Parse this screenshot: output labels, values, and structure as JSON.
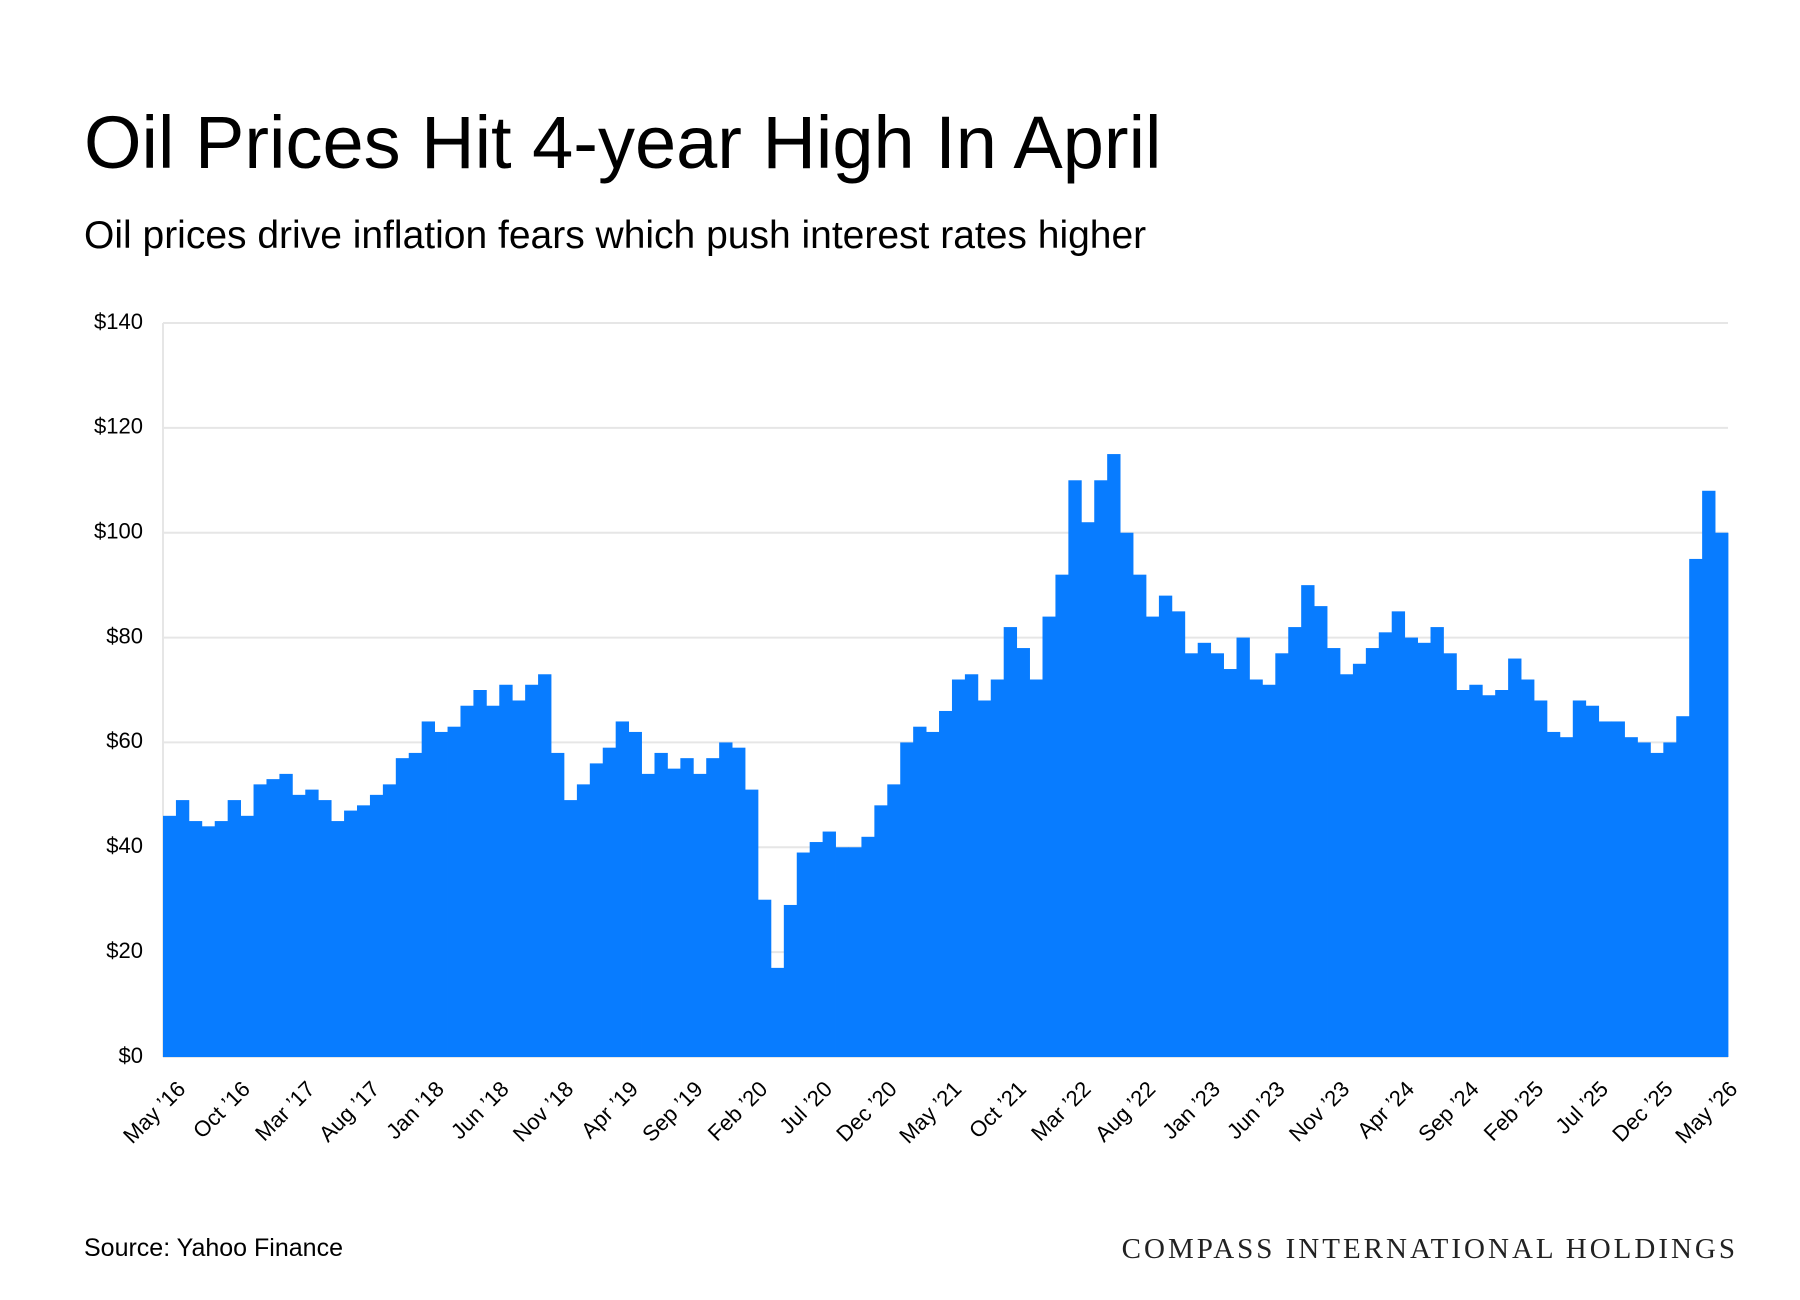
{
  "chart_data": {
    "type": "bar",
    "title": "Oil Prices Hit 4-year High In April",
    "subtitle": "Oil prices drive inflation fears which push interest rates higher",
    "source": "Source: Yahoo Finance",
    "brand": "COMPASS INTERNATIONAL HOLDINGS",
    "color": "#087cff",
    "grid": true,
    "ylim": [
      0,
      140
    ],
    "yticks": [
      {
        "value": 0,
        "label": "$0"
      },
      {
        "value": 20,
        "label": "$20"
      },
      {
        "value": 40,
        "label": "$40"
      },
      {
        "value": 60,
        "label": "$60"
      },
      {
        "value": 80,
        "label": "$80"
      },
      {
        "value": 100,
        "label": "$100"
      },
      {
        "value": 120,
        "label": "$120"
      },
      {
        "value": 140,
        "label": "$140"
      }
    ],
    "categories": [
      "May ’16",
      null,
      null,
      null,
      null,
      "Oct ’16",
      null,
      null,
      null,
      null,
      "Mar ’17",
      null,
      null,
      null,
      null,
      "Aug ’17",
      null,
      null,
      null,
      null,
      "Jan ’18",
      null,
      null,
      null,
      null,
      "Jun ’18",
      null,
      null,
      null,
      null,
      "Nov ’18",
      null,
      null,
      null,
      null,
      "Apr ’19",
      null,
      null,
      null,
      null,
      "Sep ’19",
      null,
      null,
      null,
      null,
      "Feb ’20",
      null,
      null,
      null,
      null,
      "Jul ’20",
      null,
      null,
      null,
      null,
      "Dec ’20",
      null,
      null,
      null,
      null,
      "May ’21",
      null,
      null,
      null,
      null,
      "Oct ’21",
      null,
      null,
      null,
      null,
      "Mar ’22",
      null,
      null,
      null,
      null,
      "Aug ’22",
      null,
      null,
      null,
      null,
      "Jan ’23",
      null,
      null,
      null,
      null,
      "Jun ’23",
      null,
      null,
      null,
      null,
      "Nov ’23",
      null,
      null,
      null,
      null,
      "Apr ’24",
      null,
      null,
      null,
      null,
      "Sep ’24",
      null,
      null,
      null,
      null,
      "Feb ’25",
      null,
      null,
      null,
      null,
      "Jul ’25",
      null,
      null,
      null,
      null,
      "Dec ’25",
      null,
      null,
      null,
      null,
      "May ’26"
    ],
    "values": [
      46,
      49,
      45,
      44,
      45,
      49,
      46,
      52,
      53,
      54,
      50,
      51,
      49,
      45,
      47,
      48,
      50,
      52,
      57,
      58,
      64,
      62,
      63,
      67,
      70,
      67,
      71,
      68,
      71,
      73,
      58,
      49,
      52,
      56,
      59,
      64,
      62,
      54,
      58,
      55,
      57,
      54,
      57,
      60,
      59,
      51,
      30,
      17,
      29,
      39,
      41,
      43,
      40,
      40,
      42,
      48,
      52,
      60,
      63,
      62,
      66,
      72,
      73,
      68,
      72,
      82,
      78,
      72,
      84,
      92,
      110,
      102,
      110,
      115,
      100,
      92,
      84,
      88,
      85,
      77,
      79,
      77,
      74,
      80,
      72,
      71,
      77,
      82,
      90,
      86,
      78,
      73,
      75,
      78,
      81,
      85,
      80,
      79,
      82,
      77,
      70,
      71,
      69,
      70,
      76,
      72,
      68,
      62,
      61,
      68,
      67,
      64,
      64,
      61,
      60,
      58,
      60,
      65,
      95,
      108,
      100
    ]
  }
}
